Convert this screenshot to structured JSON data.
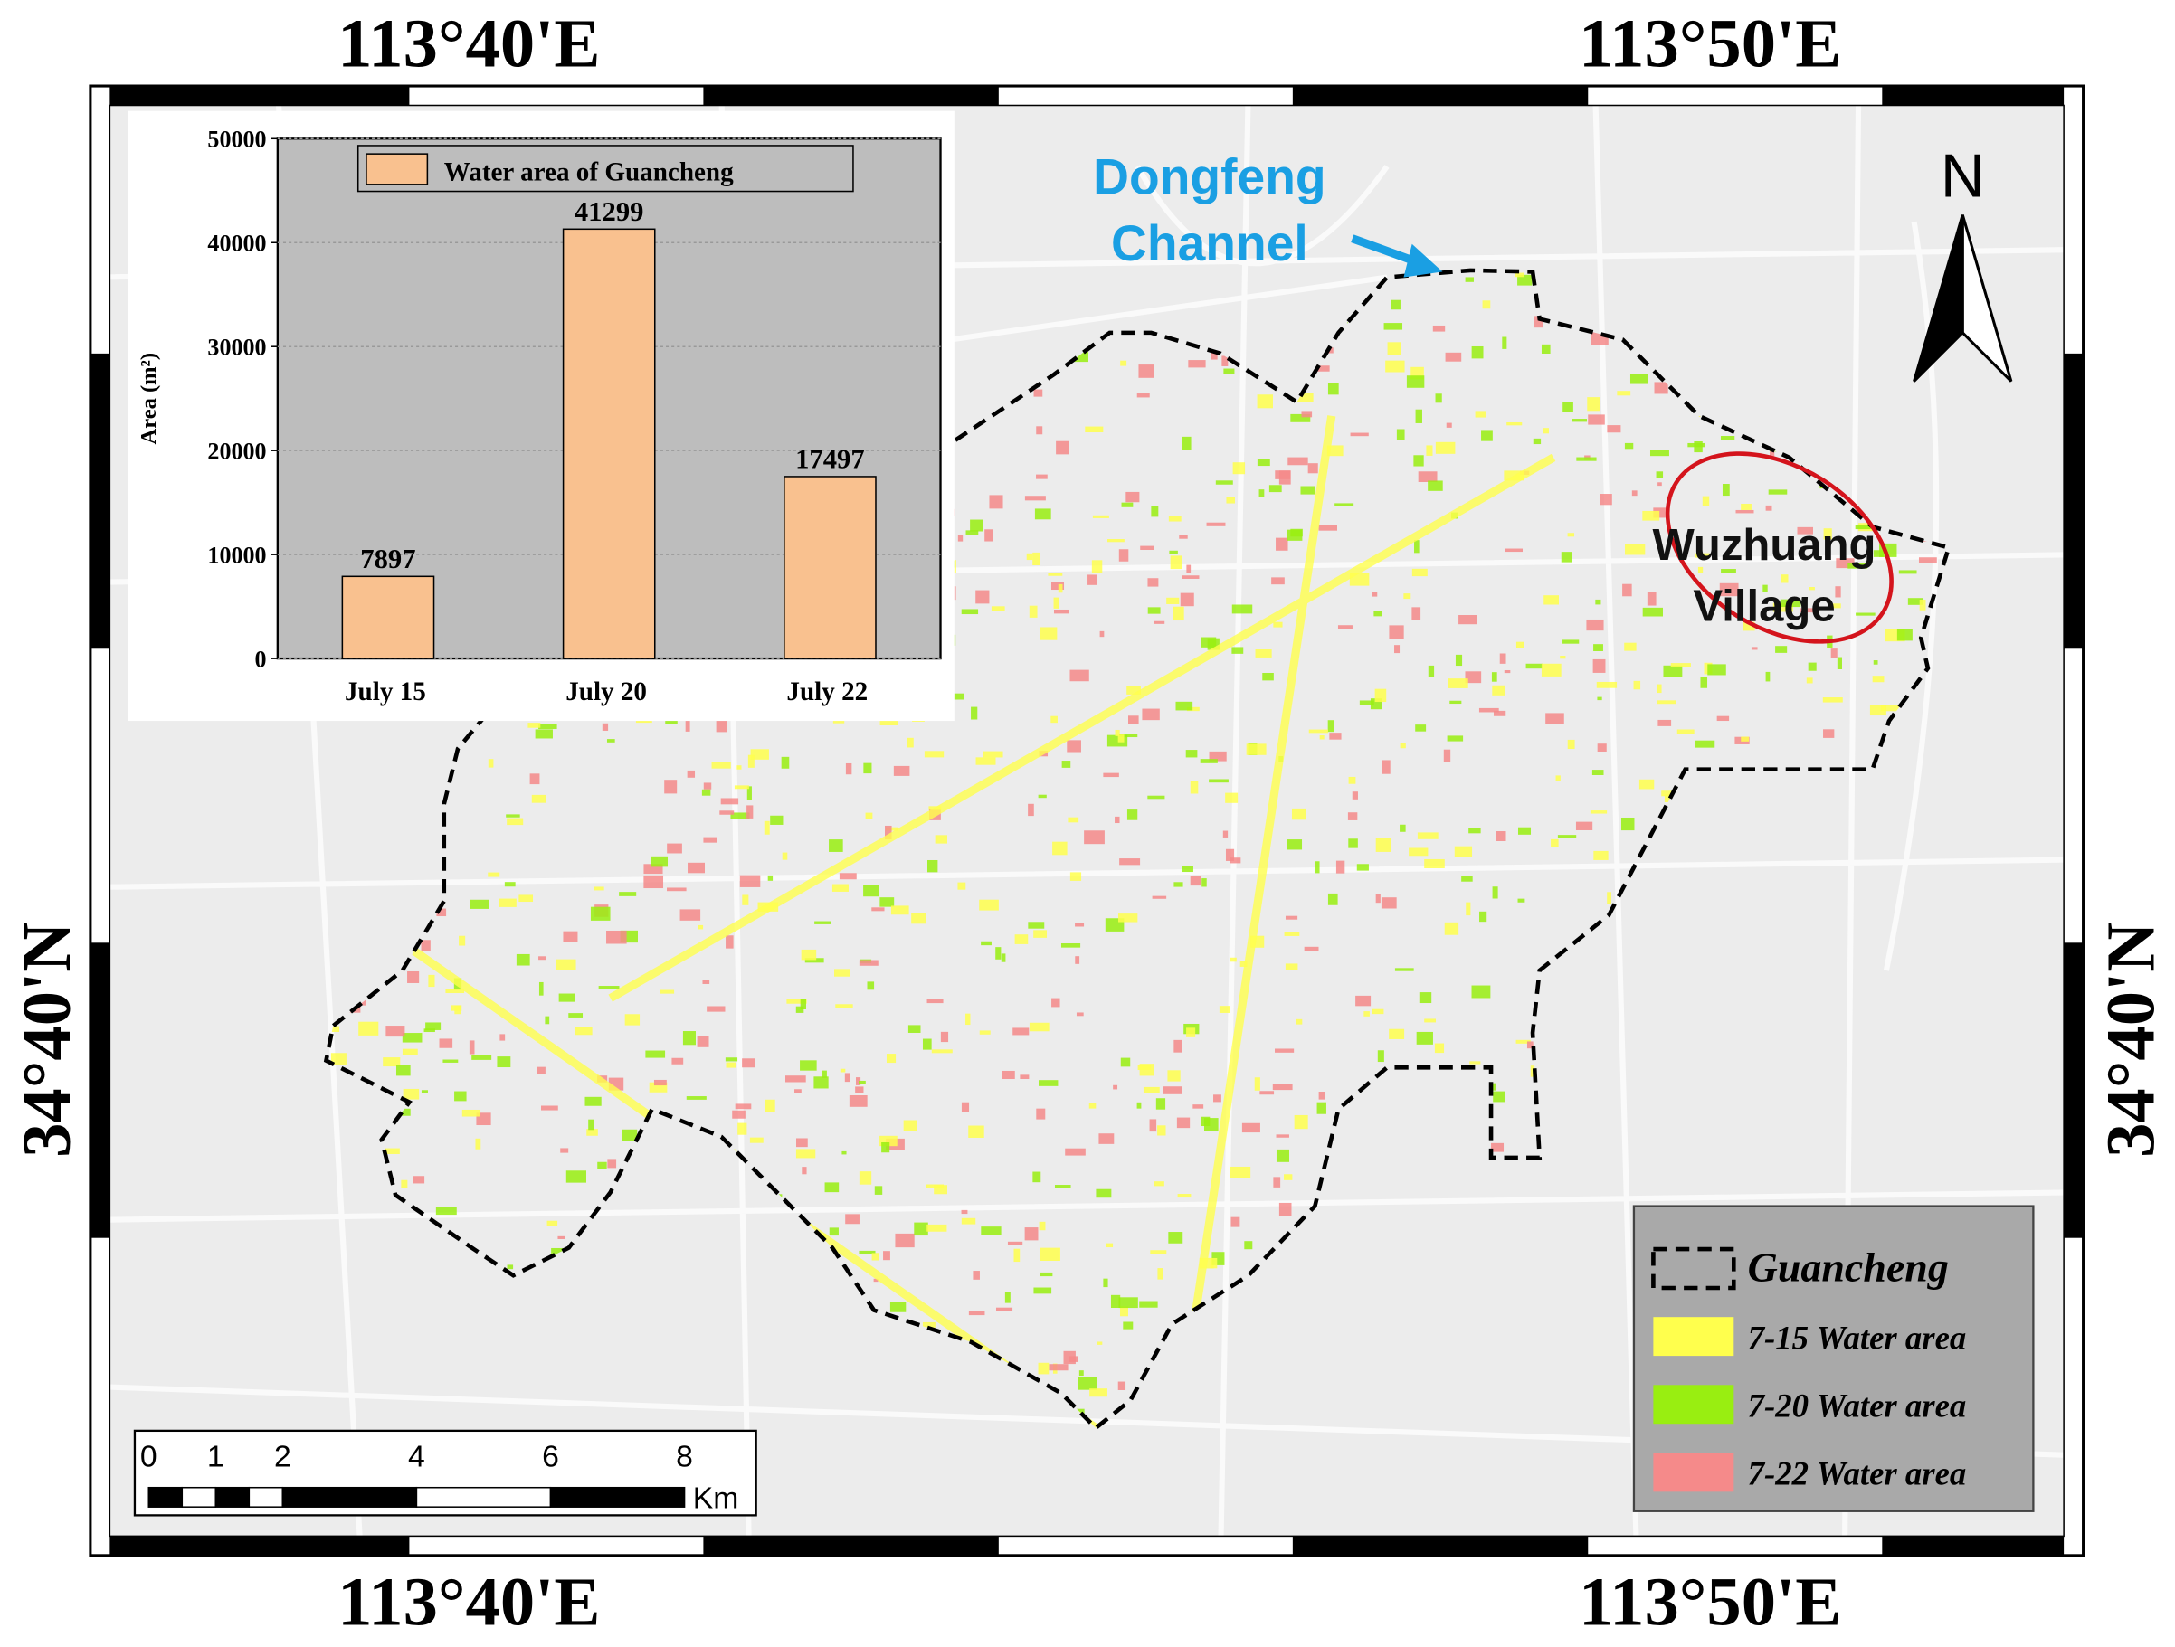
{
  "map": {
    "lon_labels": [
      "113°40'E",
      "113°50'E"
    ],
    "lat_label": "34°40'N",
    "north": "N",
    "annotations": {
      "channel": [
        "Dongfeng",
        "Channel"
      ],
      "village": [
        "Wuzhuang",
        "Village"
      ]
    },
    "scale_bar": {
      "ticks": [
        0,
        1,
        2,
        4,
        6,
        8
      ],
      "unit": "Km"
    },
    "legend": [
      {
        "label": "Guancheng"
      },
      {
        "label": "7-15 Water area",
        "color": "#ffff4d"
      },
      {
        "label": "7-20 Water area",
        "color": "#99ee11"
      },
      {
        "label": "7-22 Water area",
        "color": "#f58a8a"
      }
    ]
  },
  "chart_data": {
    "type": "bar",
    "y_label": "Area (m²)",
    "categories": [
      "July 15",
      "July 20",
      "July 22"
    ],
    "series": [
      {
        "name": "Water area of Guancheng",
        "color": "#f9c18f",
        "values": [
          7897,
          41299,
          17497
        ]
      }
    ],
    "ylim": [
      0,
      50000
    ],
    "yticks": [
      0,
      10000,
      20000,
      30000,
      40000,
      50000
    ]
  }
}
